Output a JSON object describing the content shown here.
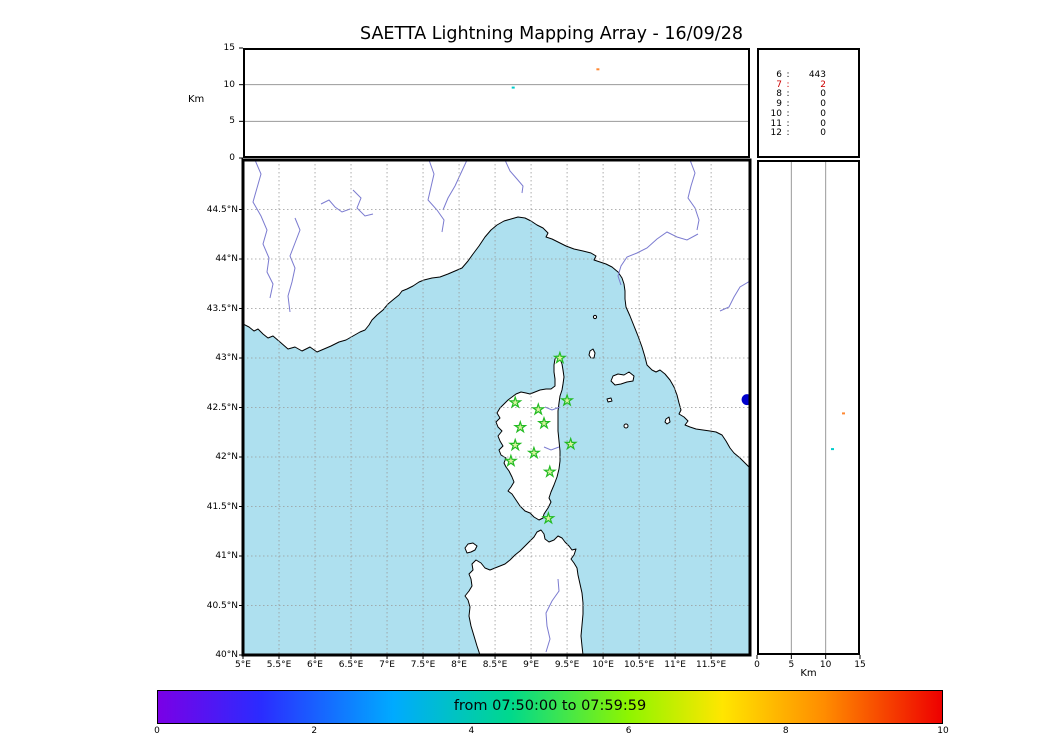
{
  "title": "SAETTA Lightning Mapping Array - 16/09/28",
  "colors": {
    "sea": "#aee0ef",
    "land": "#ffffff",
    "coastline": "#000000",
    "river": "#7b7bd0",
    "gridline": "#999999",
    "station_stroke": "#22bb22",
    "station_fill": "#d8f2a0",
    "highlight_red": "#cc0000"
  },
  "chart_data": [
    {
      "name": "altitude_time",
      "type": "scatter",
      "position": "top",
      "ylabel": "Km",
      "yticks": [
        0,
        5,
        10,
        15
      ],
      "ylim": [
        0,
        15
      ],
      "grid_km": [
        5,
        10
      ],
      "points": [
        {
          "x_frac": 0.533,
          "alt_km": 9.6,
          "color": "#00cccc"
        },
        {
          "x_frac": 0.7,
          "alt_km": 12.1,
          "color": "#ff8833"
        }
      ]
    },
    {
      "name": "station_counts",
      "type": "table",
      "rows": [
        {
          "station": "6",
          "count": "443",
          "highlight": false
        },
        {
          "station": "7",
          "count": "2",
          "highlight": true
        },
        {
          "station": "8",
          "count": "0",
          "highlight": false
        },
        {
          "station": "9",
          "count": "0",
          "highlight": false
        },
        {
          "station": "10",
          "count": "0",
          "highlight": false
        },
        {
          "station": "11",
          "count": "0",
          "highlight": false
        },
        {
          "station": "12",
          "count": "0",
          "highlight": false
        }
      ]
    },
    {
      "name": "map",
      "type": "scatter",
      "lon_range": [
        5.0,
        12.04
      ],
      "lat_range": [
        40.0,
        45.0
      ],
      "lon_ticks": [
        {
          "v": 5,
          "label": "5°E"
        },
        {
          "v": 5.5,
          "label": "5.5°E"
        },
        {
          "v": 6,
          "label": "6°E"
        },
        {
          "v": 6.5,
          "label": "6.5°E"
        },
        {
          "v": 7,
          "label": "7°E"
        },
        {
          "v": 7.5,
          "label": "7.5°E"
        },
        {
          "v": 8,
          "label": "8°E"
        },
        {
          "v": 8.5,
          "label": "8.5°E"
        },
        {
          "v": 9,
          "label": "9°E"
        },
        {
          "v": 9.5,
          "label": "9.5°E"
        },
        {
          "v": 10,
          "label": "10°E"
        },
        {
          "v": 10.5,
          "label": "10.5°E"
        },
        {
          "v": 11,
          "label": "11°E"
        },
        {
          "v": 11.5,
          "label": "11.5°E"
        }
      ],
      "lat_ticks": [
        {
          "v": 44.5,
          "label": "44.5°N"
        },
        {
          "v": 44,
          "label": "44°N"
        },
        {
          "v": 43.5,
          "label": "43.5°N"
        },
        {
          "v": 43,
          "label": "43°N"
        },
        {
          "v": 42.5,
          "label": "42.5°N"
        },
        {
          "v": 42,
          "label": "42°N"
        },
        {
          "v": 41.5,
          "label": "41.5°N"
        },
        {
          "v": 41,
          "label": "41°N"
        },
        {
          "v": 40.5,
          "label": "40.5°N"
        },
        {
          "v": 40,
          "label": "40°N"
        }
      ],
      "stations": [
        {
          "lon": 9.4,
          "lat": 43.0
        },
        {
          "lon": 8.78,
          "lat": 42.55
        },
        {
          "lon": 9.1,
          "lat": 42.48
        },
        {
          "lon": 9.5,
          "lat": 42.57
        },
        {
          "lon": 8.85,
          "lat": 42.3
        },
        {
          "lon": 9.18,
          "lat": 42.34
        },
        {
          "lon": 8.78,
          "lat": 42.12
        },
        {
          "lon": 8.72,
          "lat": 41.96
        },
        {
          "lon": 9.04,
          "lat": 42.04
        },
        {
          "lon": 9.55,
          "lat": 42.13
        },
        {
          "lon": 9.26,
          "lat": 41.85
        },
        {
          "lon": 9.24,
          "lat": 41.38
        }
      ],
      "sources": [
        {
          "lon": 12.0,
          "lat": 42.58,
          "color": "#0000cc",
          "r": 5.5
        }
      ]
    },
    {
      "name": "altitude_lat",
      "type": "scatter",
      "position": "right",
      "xlabel": "Km",
      "xticks": [
        0,
        5,
        10,
        15
      ],
      "xlim": [
        0,
        15
      ],
      "grid_km": [
        5,
        10
      ],
      "points": [
        {
          "alt_km": 12.6,
          "lat": 42.44,
          "color": "#ff8833"
        },
        {
          "alt_km": 11.0,
          "lat": 42.08,
          "color": "#00cccc"
        }
      ]
    },
    {
      "name": "colorbar",
      "type": "colorbar",
      "label": "from 07:50:00 to 07:59:59",
      "ticks": [
        0,
        2,
        4,
        6,
        8,
        10
      ],
      "gradient": [
        {
          "color": "#7a00e6",
          "pos": 0
        },
        {
          "color": "#2b2bff",
          "pos": 13
        },
        {
          "color": "#00aaff",
          "pos": 30
        },
        {
          "color": "#00d98c",
          "pos": 45
        },
        {
          "color": "#8ef500",
          "pos": 60
        },
        {
          "color": "#ffe600",
          "pos": 72
        },
        {
          "color": "#ff8c00",
          "pos": 85
        },
        {
          "color": "#ee0000",
          "pos": 100
        }
      ]
    }
  ]
}
